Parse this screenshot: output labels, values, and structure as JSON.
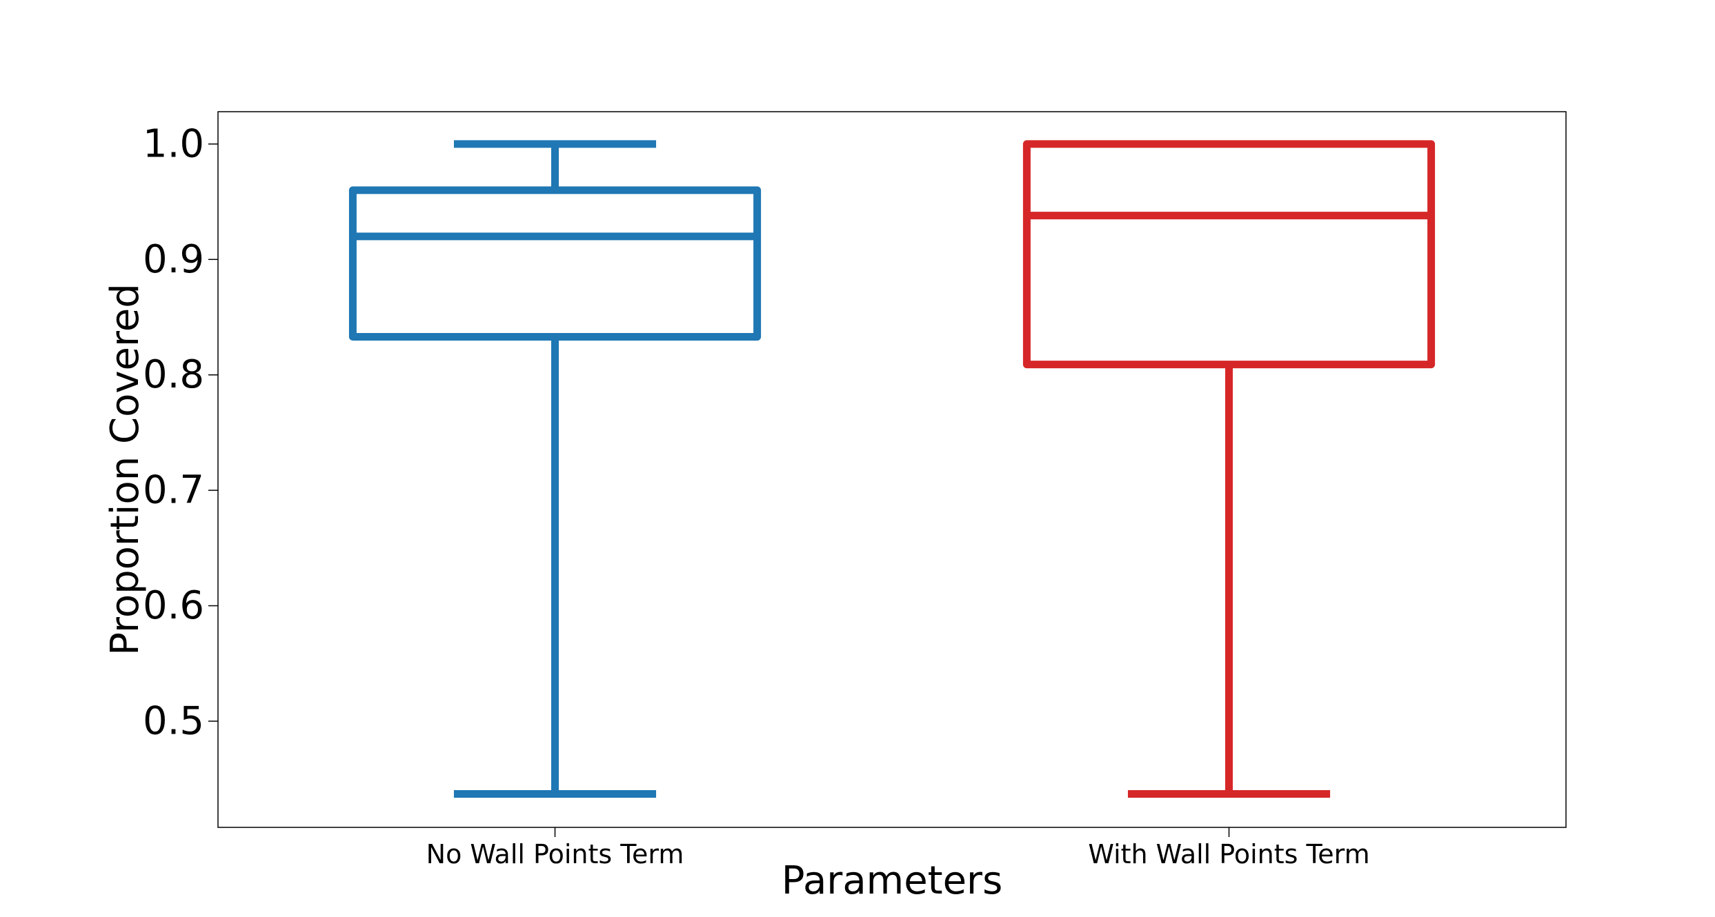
{
  "chart_data": {
    "type": "box",
    "title": "",
    "xlabel": "Parameters",
    "ylabel": "Proportion Covered",
    "ylim": [
      0.408,
      1.028
    ],
    "yticks": [
      0.5,
      0.6,
      0.7,
      0.8,
      0.9,
      1.0
    ],
    "ytick_labels": [
      "0.5",
      "0.6",
      "0.7",
      "0.8",
      "0.9",
      "1.0"
    ],
    "grid": false,
    "categories": [
      "No Wall Points Term",
      "With Wall Points Term"
    ],
    "boxes": [
      {
        "label": "No Wall Points Term",
        "color": "#1f77b4",
        "whisker_low": 0.437,
        "q1": 0.833,
        "median": 0.92,
        "q3": 0.96,
        "whisker_high": 1.0
      },
      {
        "label": "With Wall Points Term",
        "color": "#d62728",
        "whisker_low": 0.437,
        "q1": 0.809,
        "median": 0.938,
        "q3": 1.0,
        "whisker_high": 1.0
      }
    ]
  }
}
